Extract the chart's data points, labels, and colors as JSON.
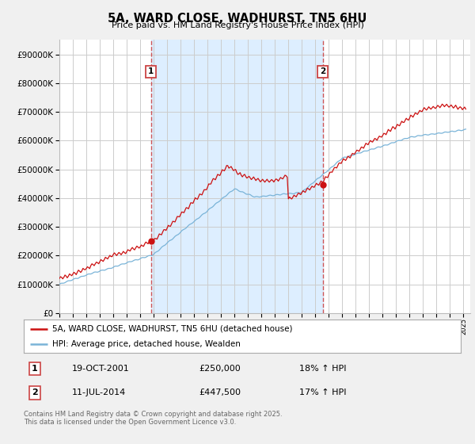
{
  "title": "5A, WARD CLOSE, WADHURST, TN5 6HU",
  "subtitle": "Price paid vs. HM Land Registry's House Price Index (HPI)",
  "yticks": [
    0,
    100000,
    200000,
    300000,
    400000,
    500000,
    600000,
    700000,
    800000,
    900000
  ],
  "hpi_color": "#7ab4d8",
  "price_color": "#cc1111",
  "vline_color": "#cc4444",
  "shade_color": "#ddeeff",
  "sale1_year_f": 2001.79,
  "sale2_year_f": 2014.54,
  "sale1_price_val": 250000,
  "sale2_price_val": 447500,
  "sale1_date": "19-OCT-2001",
  "sale1_price": "£250,000",
  "sale1_hpi": "18% ↑ HPI",
  "sale2_date": "11-JUL-2014",
  "sale2_price": "£447,500",
  "sale2_hpi": "17% ↑ HPI",
  "legend_line1": "5A, WARD CLOSE, WADHURST, TN5 6HU (detached house)",
  "legend_line2": "HPI: Average price, detached house, Wealden",
  "footer": "Contains HM Land Registry data © Crown copyright and database right 2025.\nThis data is licensed under the Open Government Licence v3.0.",
  "xmin": 1995,
  "xmax": 2025.5,
  "ymax": 950000,
  "background_color": "#f0f0f0",
  "plot_bg": "#ffffff"
}
